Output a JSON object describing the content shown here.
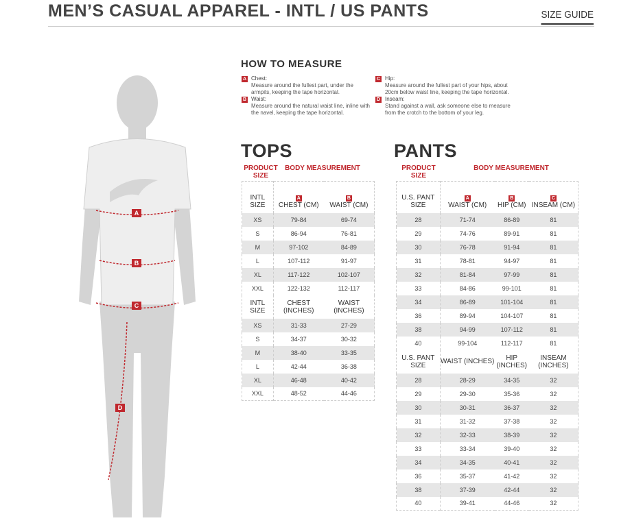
{
  "header": {
    "title": "MEN’S CASUAL APPAREL - INTL / US PANTS",
    "size_guide": "SIZE GUIDE"
  },
  "figure": {
    "labels": [
      "A",
      "B",
      "C",
      "D"
    ],
    "accent": "#c0282e"
  },
  "how_to": {
    "title": "HOW TO MEASURE",
    "items": [
      {
        "letter": "A",
        "label": "Chest:",
        "desc": "Measure around the fullest part, under the armpits, keeping the tape horizontal."
      },
      {
        "letter": "B",
        "label": "Waist:",
        "desc": "Measure around the natural waist line, inline with the navel, keeping the tape horizontal."
      },
      {
        "letter": "C",
        "label": "Hip:",
        "desc": "Measure around the fullest part of your hips, about 20cm below waist line, keeping the tape horizontal."
      },
      {
        "letter": "D",
        "label": "Inseam:",
        "desc": "Stand against a wall, ask someone else to measure from the crotch to the bottom of your leg."
      }
    ]
  },
  "tops": {
    "title": "TOPS",
    "product_size": "PRODUCT SIZE",
    "body_measurement": "BODY MEASUREMENT",
    "letters": [
      "A",
      "B"
    ],
    "cm_headers": [
      "INTL SIZE",
      "CHEST (CM)",
      "WAIST (CM)"
    ],
    "cm_rows": [
      [
        "XS",
        "79-84",
        "69-74"
      ],
      [
        "S",
        "86-94",
        "76-81"
      ],
      [
        "M",
        "97-102",
        "84-89"
      ],
      [
        "L",
        "107-112",
        "91-97"
      ],
      [
        "XL",
        "117-122",
        "102-107"
      ],
      [
        "XXL",
        "122-132",
        "112-117"
      ]
    ],
    "in_headers": [
      "INTL SIZE",
      "CHEST (INCHES)",
      "WAIST (INCHES)"
    ],
    "in_rows": [
      [
        "XS",
        "31-33",
        "27-29"
      ],
      [
        "S",
        "34-37",
        "30-32"
      ],
      [
        "M",
        "38-40",
        "33-35"
      ],
      [
        "L",
        "42-44",
        "36-38"
      ],
      [
        "XL",
        "46-48",
        "40-42"
      ],
      [
        "XXL",
        "48-52",
        "44-46"
      ]
    ]
  },
  "pants": {
    "title": "PANTS",
    "product_size": "PRODUCT SIZE",
    "body_measurement": "BODY MEASUREMENT",
    "letters": [
      "A",
      "B",
      "C"
    ],
    "cm_headers": [
      "U.S. PANT SIZE",
      "WAIST (CM)",
      "HIP (CM)",
      "INSEAM (CM)"
    ],
    "cm_rows": [
      [
        "28",
        "71-74",
        "86-89",
        "81"
      ],
      [
        "29",
        "74-76",
        "89-91",
        "81"
      ],
      [
        "30",
        "76-78",
        "91-94",
        "81"
      ],
      [
        "31",
        "78-81",
        "94-97",
        "81"
      ],
      [
        "32",
        "81-84",
        "97-99",
        "81"
      ],
      [
        "33",
        "84-86",
        "99-101",
        "81"
      ],
      [
        "34",
        "86-89",
        "101-104",
        "81"
      ],
      [
        "36",
        "89-94",
        "104-107",
        "81"
      ],
      [
        "38",
        "94-99",
        "107-112",
        "81"
      ],
      [
        "40",
        "99-104",
        "112-117",
        "81"
      ]
    ],
    "in_headers": [
      "U.S. PANT SIZE",
      "WAIST (INCHES)",
      "HIP (INCHES)",
      "INSEAM (INCHES)"
    ],
    "in_rows": [
      [
        "28",
        "28-29",
        "34-35",
        "32"
      ],
      [
        "29",
        "29-30",
        "35-36",
        "32"
      ],
      [
        "30",
        "30-31",
        "36-37",
        "32"
      ],
      [
        "31",
        "31-32",
        "37-38",
        "32"
      ],
      [
        "32",
        "32-33",
        "38-39",
        "32"
      ],
      [
        "33",
        "33-34",
        "39-40",
        "32"
      ],
      [
        "34",
        "34-35",
        "40-41",
        "32"
      ],
      [
        "36",
        "35-37",
        "41-42",
        "32"
      ],
      [
        "38",
        "37-39",
        "42-44",
        "32"
      ],
      [
        "40",
        "39-41",
        "44-46",
        "32"
      ]
    ]
  }
}
